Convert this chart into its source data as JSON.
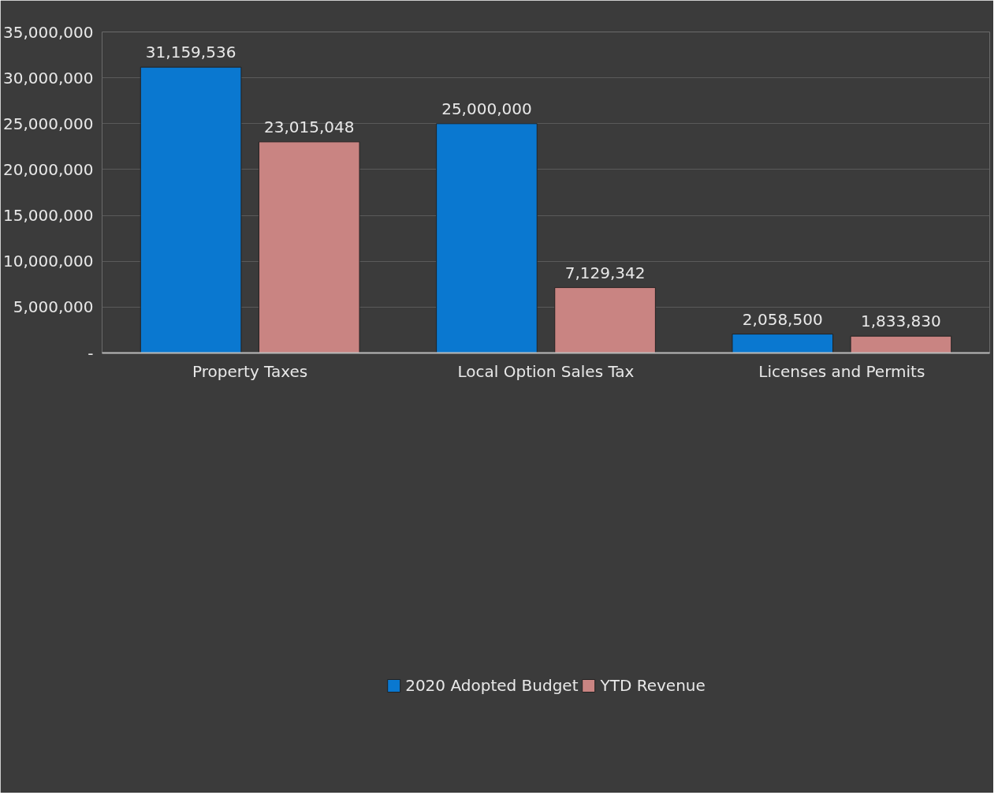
{
  "chart_data": {
    "type": "bar",
    "categories": [
      "Property Taxes",
      "Local Option Sales Tax",
      "Licenses and Permits"
    ],
    "series": [
      {
        "name": "2020 Adopted Budget",
        "color": "#0a78d0",
        "values": [
          31159536,
          25000000,
          2058500
        ],
        "value_labels": [
          "31,159,536",
          "25,000,000",
          "2,058,500"
        ]
      },
      {
        "name": "YTD Revenue",
        "color": "#c98482",
        "values": [
          23015048,
          7129342,
          1833830
        ],
        "value_labels": [
          "23,015,048",
          "7,129,342",
          "1,833,830"
        ]
      }
    ],
    "ylim": [
      0,
      35000000
    ],
    "yticks": [
      {
        "value": 0,
        "label": "-"
      },
      {
        "value": 5000000,
        "label": "5,000,000"
      },
      {
        "value": 10000000,
        "label": "10,000,000"
      },
      {
        "value": 15000000,
        "label": "15,000,000"
      },
      {
        "value": 20000000,
        "label": "20,000,000"
      },
      {
        "value": 25000000,
        "label": "25,000,000"
      },
      {
        "value": 30000000,
        "label": "30,000,000"
      },
      {
        "value": 35000000,
        "label": "35,000,000"
      }
    ],
    "grid": "y",
    "legend": "bottom"
  }
}
